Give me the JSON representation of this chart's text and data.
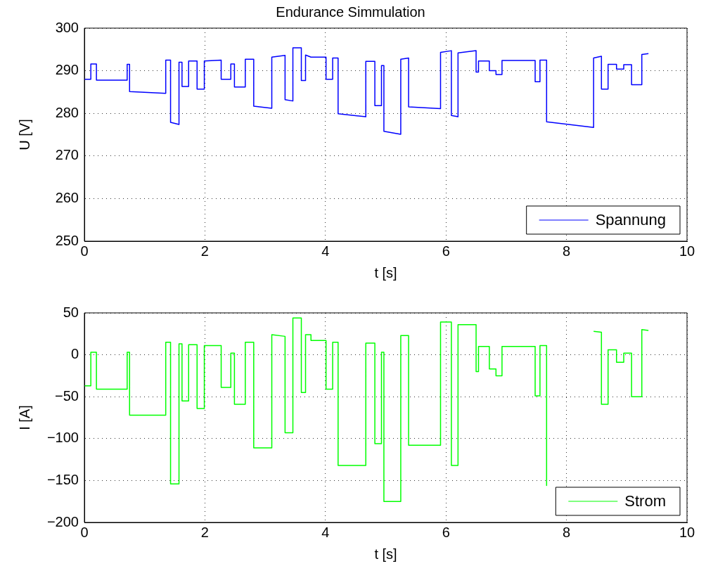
{
  "chart_data": [
    {
      "type": "line",
      "title": "Endurance Simmulation",
      "xlabel": "t [s]",
      "ylabel": "U [V]",
      "xlim": [
        0,
        10
      ],
      "xticks": [
        0,
        2,
        4,
        6,
        8,
        10
      ],
      "ylim": [
        250,
        300
      ],
      "yticks": [
        250,
        260,
        270,
        280,
        290,
        300
      ],
      "grid": true,
      "legend": "bottom right",
      "series": [
        {
          "name": "Spannung",
          "color": "#0000ff",
          "x": [
            0,
            0.107,
            0.107,
            0.2,
            0.2,
            0.71,
            0.71,
            0.75,
            0.75,
            1.35,
            1.35,
            1.43,
            1.43,
            1.57,
            1.57,
            1.62,
            1.62,
            1.73,
            1.73,
            1.87,
            1.87,
            1.99,
            1.99,
            2.27,
            2.27,
            2.43,
            2.43,
            2.49,
            2.49,
            2.67,
            2.67,
            2.81,
            2.81,
            3.11,
            3.11,
            3.33,
            3.33,
            3.46,
            3.46,
            3.6,
            3.6,
            3.67,
            3.67,
            3.76,
            3.76,
            4.01,
            4.01,
            4.12,
            4.12,
            4.21,
            4.21,
            4.67,
            4.67,
            4.82,
            4.82,
            4.93,
            4.93,
            4.97,
            4.97,
            5.25,
            5.25,
            5.38,
            5.38,
            5.91,
            5.91,
            6.09,
            6.09,
            6.2,
            6.2,
            6.5,
            6.5,
            6.54,
            6.54,
            6.72,
            6.72,
            6.83,
            6.83,
            6.93,
            6.93,
            7.48,
            7.48,
            7.56,
            7.56,
            7.67,
            7.67,
            8.45,
            8.45,
            8.58,
            8.58,
            8.69,
            8.69,
            8.83,
            8.83,
            8.95,
            8.95,
            9.08,
            9.08,
            9.25,
            9.25,
            9.36
          ],
          "values": [
            288,
            288,
            291.6,
            291.6,
            287.8,
            287.8,
            291.5,
            291.5,
            285.1,
            284.7,
            292.5,
            292.5,
            277.9,
            277.4,
            292,
            292,
            286.3,
            286.3,
            292.3,
            292.3,
            285.7,
            285.7,
            292.3,
            292.5,
            288,
            288,
            291.6,
            291.6,
            286.2,
            286.2,
            292.7,
            292.7,
            281.7,
            281.2,
            293.2,
            293.6,
            283.2,
            282.9,
            295.4,
            295.4,
            287.7,
            287.7,
            293.7,
            293.2,
            293.2,
            293.2,
            288,
            288,
            293,
            293,
            279.9,
            279.2,
            292.2,
            292.2,
            281.8,
            281.8,
            291.2,
            291.2,
            275.8,
            275.1,
            292.7,
            293,
            281.5,
            281.1,
            294.3,
            294.7,
            279.5,
            279.2,
            294.2,
            294.7,
            289.7,
            289.7,
            292.3,
            292.3,
            290,
            290,
            289.1,
            289.1,
            292.4,
            292.4,
            287.4,
            287.4,
            292.5,
            292.5,
            278,
            276.7,
            293,
            293.4,
            285.7,
            285.7,
            291.5,
            291.5,
            290.4,
            290.4,
            291.4,
            291.4,
            286.7,
            286.7,
            293.8,
            294
          ]
        }
      ]
    },
    {
      "type": "line",
      "xlabel": "t [s]",
      "ylabel": "I [A]",
      "xlim": [
        0,
        10
      ],
      "xticks": [
        0,
        2,
        4,
        6,
        8,
        10
      ],
      "ylim": [
        -200,
        50
      ],
      "yticks": [
        -200,
        -150,
        -100,
        -50,
        0,
        50
      ],
      "grid": true,
      "legend": "bottom right",
      "series": [
        {
          "name": "Strom",
          "color": "#00ff00",
          "x": [
            0,
            0.107,
            0.107,
            0.2,
            0.2,
            0.71,
            0.71,
            0.75,
            0.75,
            1.35,
            1.35,
            1.43,
            1.43,
            1.57,
            1.57,
            1.62,
            1.62,
            1.73,
            1.73,
            1.87,
            1.87,
            1.99,
            1.99,
            2.27,
            2.27,
            2.43,
            2.43,
            2.49,
            2.49,
            2.67,
            2.67,
            2.81,
            2.81,
            3.11,
            3.11,
            3.33,
            3.33,
            3.46,
            3.46,
            3.6,
            3.6,
            3.67,
            3.67,
            3.76,
            3.76,
            4.01,
            4.01,
            4.12,
            4.12,
            4.21,
            4.21,
            4.67,
            4.67,
            4.82,
            4.82,
            4.93,
            4.93,
            4.97,
            4.97,
            5.25,
            5.25,
            5.38,
            5.38,
            5.91,
            5.91,
            6.09,
            6.09,
            6.2,
            6.2,
            6.5,
            6.5,
            6.54,
            6.54,
            6.72,
            6.72,
            6.83,
            6.83,
            6.93,
            6.93,
            7.48,
            7.48,
            7.56,
            7.56,
            7.67,
            7.67,
            8.0,
            8.45,
            8.58,
            8.58,
            8.69,
            8.69,
            8.83,
            8.83,
            8.95,
            8.95,
            9.08,
            9.08,
            9.25,
            9.25,
            9.36
          ],
          "values": [
            -37,
            -37,
            3,
            3,
            -41,
            -41,
            3,
            3,
            -72,
            -72,
            15,
            15,
            -154,
            -154,
            13,
            13,
            -55,
            -55,
            12,
            12,
            -64,
            -64,
            11,
            11,
            -39,
            -39,
            2,
            2,
            -59,
            -59,
            15,
            15,
            -111,
            -111,
            24,
            22,
            -93,
            -93,
            44,
            44,
            -45,
            -45,
            24,
            24,
            17,
            17,
            -41,
            -41,
            15,
            15,
            -132,
            -132,
            14,
            14,
            -106,
            -106,
            3,
            3,
            -175,
            -175,
            23,
            23,
            -108,
            -108,
            39,
            39,
            -132,
            -132,
            36,
            36,
            -20,
            -20,
            10,
            10,
            -17,
            -17,
            -25,
            -25,
            10,
            10,
            -49,
            -49,
            11,
            11,
            -156,
            null,
            28,
            27,
            -59,
            -59,
            6,
            6,
            -9,
            -9,
            2,
            2,
            -50,
            -50,
            30,
            29
          ]
        }
      ]
    }
  ]
}
